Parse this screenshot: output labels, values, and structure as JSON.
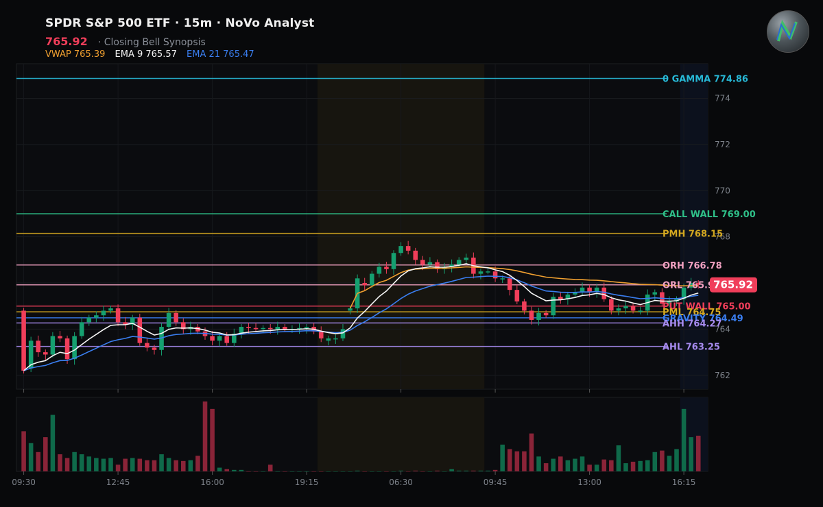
{
  "header": {
    "title": "SPDR S&P 500 ETF · 15m · NoVo Analyst",
    "price": "765.92",
    "subtitle": "· Closing Bell Synopsis",
    "indicators": [
      {
        "label": "VWAP 765.39",
        "color": "#f0a030"
      },
      {
        "label": "EMA 9 765.57",
        "color": "#f5f5f5"
      },
      {
        "label": "EMA 21 765.47",
        "color": "#3a7ef0"
      }
    ]
  },
  "chart_data": {
    "type": "candlestick",
    "ylim": [
      761.4,
      775.5
    ],
    "y_ticks": [
      762,
      764,
      766,
      768,
      770,
      772,
      774
    ],
    "x_ticks": [
      "09:30",
      "12:45",
      "16:00",
      "19:15",
      "06:30",
      "09:45",
      "13:00",
      "16:15"
    ],
    "last_price": "765.92",
    "levels": [
      {
        "label": "0 GAMMA 774.86",
        "value": 774.86,
        "color": "#27b8d6"
      },
      {
        "label": "CALL WALL 769.00",
        "value": 769.0,
        "color": "#2fbf88"
      },
      {
        "label": "PMH 768.15",
        "value": 768.15,
        "color": "#d4a820"
      },
      {
        "label": "ORH 766.78",
        "value": 766.78,
        "color": "#f0a0c0"
      },
      {
        "label": "ORL 765.92",
        "value": 765.92,
        "color": "#f0a0c0"
      },
      {
        "label": "PUT WALL 765.00",
        "value": 765.0,
        "color": "#f03e5a"
      },
      {
        "label": "PML 764.75",
        "value": 764.75,
        "color": "#d4a820"
      },
      {
        "label": "GRAVITY 764.49",
        "value": 764.49,
        "color": "#3a7ef0"
      },
      {
        "label": "AHH 764.27",
        "value": 764.27,
        "color": "#a88cf0"
      },
      {
        "label": "AHL 763.25",
        "value": 763.25,
        "color": "#a88cf0"
      }
    ],
    "sessions": [
      {
        "name": "premarket",
        "start": 41,
        "end": 63
      },
      {
        "name": "afterhours",
        "start": 91,
        "end": 99
      }
    ],
    "candles": [
      [
        764.8,
        762.2
      ],
      [
        762.3,
        763.5
      ],
      [
        763.5,
        763.0
      ],
      [
        763.0,
        762.9
      ],
      [
        762.9,
        763.7
      ],
      [
        763.7,
        763.6
      ],
      [
        763.6,
        762.7
      ],
      [
        762.7,
        763.7
      ],
      [
        763.7,
        764.3
      ],
      [
        764.3,
        764.5
      ],
      [
        764.5,
        764.6
      ],
      [
        764.6,
        764.8
      ],
      [
        764.8,
        764.9
      ],
      [
        764.9,
        764.3
      ],
      [
        764.3,
        764.2
      ],
      [
        764.2,
        764.5
      ],
      [
        764.5,
        763.4
      ],
      [
        763.4,
        763.2
      ],
      [
        763.2,
        763.1
      ],
      [
        763.1,
        764.1
      ],
      [
        764.1,
        764.7
      ],
      [
        764.7,
        764.3
      ],
      [
        764.3,
        764.0
      ],
      [
        764.0,
        764.1
      ],
      [
        764.1,
        763.9
      ],
      [
        763.9,
        763.7
      ],
      [
        763.7,
        763.5
      ],
      [
        763.5,
        763.7
      ],
      [
        763.7,
        763.4
      ],
      [
        763.4,
        763.8
      ],
      [
        763.8,
        764.1
      ],
      [
        764.1,
        764.05
      ],
      [
        764.05,
        764.0
      ],
      [
        764.0,
        764.05
      ],
      [
        764.05,
        764.0
      ],
      [
        764.0,
        764.1
      ],
      [
        764.1,
        764.0
      ],
      [
        764.0,
        764.0
      ],
      [
        764.0,
        764.05
      ],
      [
        764.05,
        764.1
      ],
      [
        764.1,
        763.9
      ],
      [
        763.9,
        763.6
      ],
      [
        763.5,
        763.6
      ],
      [
        763.6,
        763.6
      ],
      [
        763.6,
        764.0
      ],
      [
        764.8,
        764.9
      ],
      [
        764.9,
        766.2
      ],
      [
        766.0,
        765.9
      ],
      [
        765.9,
        766.4
      ],
      [
        766.4,
        766.7
      ],
      [
        766.7,
        766.6
      ],
      [
        766.6,
        767.3
      ],
      [
        767.3,
        767.6
      ],
      [
        767.6,
        767.4
      ],
      [
        767.4,
        767.0
      ],
      [
        767.0,
        766.8
      ],
      [
        766.8,
        766.9
      ],
      [
        766.9,
        766.6
      ],
      [
        766.6,
        766.7
      ],
      [
        766.7,
        766.8
      ],
      [
        766.8,
        767.0
      ],
      [
        767.0,
        767.1
      ],
      [
        767.1,
        766.4
      ],
      [
        766.4,
        766.5
      ],
      [
        766.5,
        766.5
      ],
      [
        766.5,
        766.2
      ],
      [
        766.2,
        766.2
      ],
      [
        766.2,
        765.7
      ],
      [
        765.7,
        765.2
      ],
      [
        765.2,
        764.8
      ],
      [
        764.8,
        764.4
      ],
      [
        764.4,
        764.7
      ],
      [
        764.7,
        764.6
      ],
      [
        764.6,
        765.4
      ],
      [
        765.4,
        765.3
      ],
      [
        765.3,
        765.5
      ],
      [
        765.5,
        765.6
      ],
      [
        765.6,
        765.8
      ],
      [
        765.8,
        765.6
      ],
      [
        765.6,
        765.8
      ],
      [
        765.8,
        765.3
      ],
      [
        765.3,
        764.8
      ],
      [
        764.8,
        764.9
      ],
      [
        764.9,
        765.0
      ],
      [
        765.0,
        764.8
      ],
      [
        764.8,
        764.8
      ],
      [
        764.8,
        765.5
      ],
      [
        765.5,
        765.6
      ],
      [
        765.6,
        765.1
      ],
      [
        765.1,
        765.2
      ],
      [
        765.2,
        765.3
      ],
      [
        765.3,
        765.8
      ],
      [
        765.8,
        766.0
      ],
      [
        766.0,
        765.92
      ]
    ],
    "volume": [
      54,
      38,
      26,
      46,
      76,
      23,
      18,
      26,
      23,
      20,
      18,
      17,
      18,
      9,
      17,
      18,
      17,
      15,
      15,
      23,
      18,
      15,
      14,
      15,
      21,
      94,
      84,
      5,
      3,
      2,
      2,
      0,
      0,
      0,
      9,
      0,
      0,
      0,
      0,
      0,
      0,
      0,
      0,
      0,
      0,
      0,
      1,
      0,
      0,
      0,
      0,
      0,
      1,
      0,
      1,
      0,
      0,
      1,
      0,
      3,
      1,
      1,
      1,
      1,
      1,
      2,
      36,
      30,
      27,
      27,
      51,
      20,
      11,
      17,
      20,
      15,
      17,
      20,
      9,
      9,
      16,
      15,
      35,
      11,
      13,
      14,
      15,
      26,
      28,
      21,
      30,
      84,
      46,
      48
    ],
    "bullish_color": "#15a070",
    "bearish_color": "#f03e5a"
  }
}
